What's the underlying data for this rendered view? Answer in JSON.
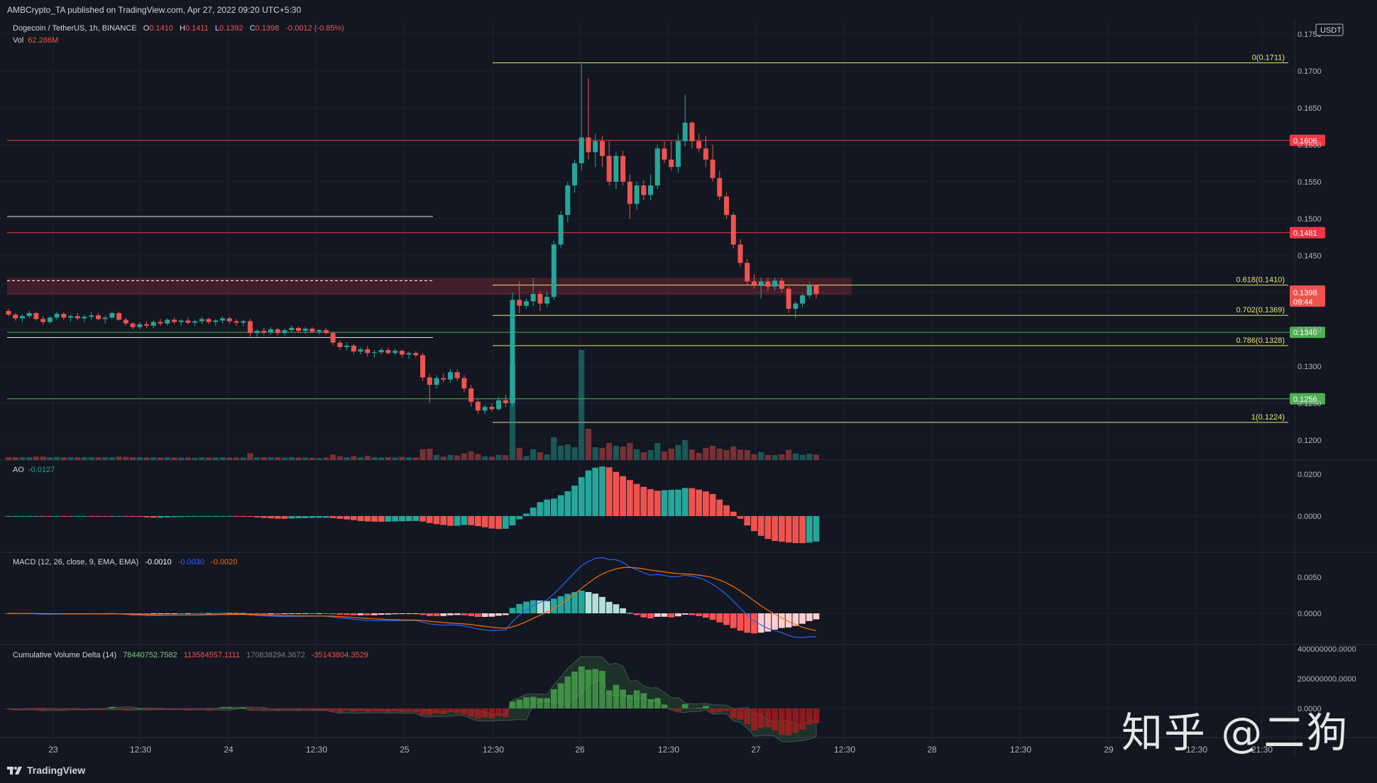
{
  "header": {
    "publisher_line": "AMBCrypto_TA published on TradingView.com, Apr 27, 2022 09:20 UTC+5:30"
  },
  "legend": {
    "symbol": "Dogecoin / TetherUS, 1h, BINANCE",
    "o_label": "O",
    "o_value": "0.1410",
    "h_label": "H",
    "h_value": "0.1411",
    "l_label": "L",
    "l_value": "0.1392",
    "c_label": "C",
    "c_value": "0.1398",
    "change": "-0.0012 (-0.85%)",
    "vol_label": "Vol",
    "vol_value": "62.286M"
  },
  "ao_legend": {
    "name": "AO",
    "value": "-0.0127"
  },
  "macd_legend": {
    "name": "MACD (12, 26, close, 9, EMA, EMA)",
    "hist": "-0.0010",
    "macd": "-0.0030",
    "signal": "-0.0020"
  },
  "cvd_legend": {
    "name": "Cumulative Volume Delta (14)",
    "v1": "78440752.7582",
    "v2": "113584557.1111",
    "v3": "170838294.3672",
    "v4": "-35143804.3529"
  },
  "currency_badge": "USDT",
  "footer": {
    "brand": "TradingView"
  },
  "watermark": "知乎 @二狗",
  "colors": {
    "background": "#131722",
    "up": "#26a69a",
    "down": "#ef5350",
    "fib": "#e8e07a",
    "red_line": "#f23645",
    "green_line": "#4caf50",
    "macd_line": "#2962ff",
    "signal_line": "#ff6d00"
  },
  "chart_data": {
    "type": "candlestick",
    "price_axis": {
      "ticks": [
        "0.1750",
        "0.1700",
        "0.1650",
        "0.1600",
        "0.1550",
        "0.1500",
        "0.1450",
        "0.1400",
        "0.1350",
        "0.1300",
        "0.1250",
        "0.1200"
      ],
      "ylim": [
        0.119,
        0.1762
      ]
    },
    "time_axis": {
      "labels": [
        "23",
        "12:30",
        "24",
        "12:30",
        "25",
        "12:30",
        "26",
        "12:30",
        "27",
        "12:30",
        "28",
        "12:30",
        "29",
        "12:30",
        "21:30"
      ]
    },
    "horizontal_levels": [
      {
        "price": 0.1606,
        "label": "0.1606",
        "color": "#f23645"
      },
      {
        "price": 0.1481,
        "label": "0.1481",
        "color": "#f23645"
      },
      {
        "price": 0.1346,
        "label": "0.1346",
        "color": "#4caf50"
      },
      {
        "price": 0.1256,
        "label": "0.1256",
        "color": "#4caf50"
      }
    ],
    "fib_levels": [
      {
        "label": "0(0.1711)",
        "price": 0.1711
      },
      {
        "label": "0.618(0.1410)",
        "price": 0.141
      },
      {
        "label": "0.702(0.1369)",
        "price": 0.1369
      },
      {
        "label": "0.786(0.1328)",
        "price": 0.1328
      },
      {
        "label": "1(0.1224)",
        "price": 0.1224
      }
    ],
    "current_price": {
      "label": "0.1398",
      "countdown": "09:44",
      "price": 0.1398
    },
    "candles": [
      [
        0.1375,
        0.1378,
        0.1368,
        0.137
      ],
      [
        0.137,
        0.1372,
        0.1362,
        0.1365
      ],
      [
        0.1365,
        0.137,
        0.136,
        0.1368
      ],
      [
        0.1368,
        0.1375,
        0.1365,
        0.1372
      ],
      [
        0.1372,
        0.1374,
        0.1362,
        0.1364
      ],
      [
        0.1364,
        0.1368,
        0.1356,
        0.136
      ],
      [
        0.136,
        0.1368,
        0.1358,
        0.1366
      ],
      [
        0.1366,
        0.1374,
        0.1363,
        0.1371
      ],
      [
        0.1371,
        0.1373,
        0.1363,
        0.1366
      ],
      [
        0.1366,
        0.137,
        0.136,
        0.1368
      ],
      [
        0.1368,
        0.1372,
        0.1362,
        0.1365
      ],
      [
        0.1365,
        0.137,
        0.136,
        0.1367
      ],
      [
        0.1367,
        0.1373,
        0.1363,
        0.1369
      ],
      [
        0.1369,
        0.1372,
        0.1362,
        0.1364
      ],
      [
        0.1364,
        0.1368,
        0.1358,
        0.1366
      ],
      [
        0.1366,
        0.1374,
        0.1364,
        0.1372
      ],
      [
        0.1372,
        0.1374,
        0.1362,
        0.1363
      ],
      [
        0.1363,
        0.1366,
        0.1355,
        0.1358
      ],
      [
        0.1358,
        0.136,
        0.135,
        0.1353
      ],
      [
        0.1353,
        0.136,
        0.135,
        0.1357
      ],
      [
        0.1357,
        0.1361,
        0.1352,
        0.1355
      ],
      [
        0.1355,
        0.1362,
        0.1352,
        0.136
      ],
      [
        0.136,
        0.1364,
        0.1355,
        0.1358
      ],
      [
        0.1358,
        0.1365,
        0.1355,
        0.1363
      ],
      [
        0.1363,
        0.1366,
        0.1357,
        0.136
      ],
      [
        0.136,
        0.1364,
        0.1355,
        0.1362
      ],
      [
        0.1362,
        0.1366,
        0.1357,
        0.1359
      ],
      [
        0.1359,
        0.1363,
        0.1355,
        0.1361
      ],
      [
        0.1361,
        0.1367,
        0.1357,
        0.1364
      ],
      [
        0.1364,
        0.1366,
        0.1357,
        0.136
      ],
      [
        0.136,
        0.1364,
        0.1355,
        0.1362
      ],
      [
        0.1362,
        0.1368,
        0.1358,
        0.1365
      ],
      [
        0.1365,
        0.1367,
        0.1358,
        0.1361
      ],
      [
        0.1361,
        0.1364,
        0.1355,
        0.1359
      ],
      [
        0.1359,
        0.1363,
        0.1354,
        0.1361
      ],
      [
        0.1361,
        0.1364,
        0.134,
        0.1345
      ],
      [
        0.1345,
        0.135,
        0.134,
        0.1348
      ],
      [
        0.1348,
        0.1352,
        0.1342,
        0.1346
      ],
      [
        0.1346,
        0.1353,
        0.1343,
        0.135
      ],
      [
        0.135,
        0.1352,
        0.1342,
        0.1345
      ],
      [
        0.1345,
        0.1351,
        0.1342,
        0.1349
      ],
      [
        0.1349,
        0.1355,
        0.1345,
        0.1352
      ],
      [
        0.1352,
        0.1354,
        0.1345,
        0.1348
      ],
      [
        0.1348,
        0.1353,
        0.1344,
        0.1351
      ],
      [
        0.1351,
        0.1353,
        0.1345,
        0.1347
      ],
      [
        0.1347,
        0.135,
        0.1343,
        0.1349
      ],
      [
        0.1349,
        0.1352,
        0.1343,
        0.1345
      ],
      [
        0.1345,
        0.1347,
        0.1328,
        0.1332
      ],
      [
        0.1332,
        0.1335,
        0.1322,
        0.1326
      ],
      [
        0.1326,
        0.1332,
        0.1322,
        0.1328
      ],
      [
        0.1328,
        0.133,
        0.1316,
        0.132
      ],
      [
        0.132,
        0.1326,
        0.1316,
        0.1323
      ],
      [
        0.1323,
        0.1328,
        0.1313,
        0.1318
      ],
      [
        0.1318,
        0.1322,
        0.1312,
        0.1319
      ],
      [
        0.1319,
        0.1325,
        0.1316,
        0.1322
      ],
      [
        0.1322,
        0.1326,
        0.1316,
        0.1318
      ],
      [
        0.1318,
        0.1324,
        0.1315,
        0.1321
      ],
      [
        0.1321,
        0.1323,
        0.1312,
        0.1316
      ],
      [
        0.1316,
        0.132,
        0.131,
        0.1318
      ],
      [
        0.1318,
        0.1321,
        0.1312,
        0.1315
      ],
      [
        0.1315,
        0.1318,
        0.128,
        0.1285
      ],
      [
        0.1285,
        0.129,
        0.125,
        0.1275
      ],
      [
        0.1275,
        0.1288,
        0.127,
        0.1284
      ],
      [
        0.1284,
        0.129,
        0.1278,
        0.1282
      ],
      [
        0.1282,
        0.1296,
        0.1278,
        0.1292
      ],
      [
        0.1292,
        0.1296,
        0.128,
        0.1284
      ],
      [
        0.1284,
        0.1288,
        0.1265,
        0.127
      ],
      [
        0.127,
        0.1275,
        0.1245,
        0.1252
      ],
      [
        0.1252,
        0.1256,
        0.1235,
        0.124
      ],
      [
        0.124,
        0.1248,
        0.1235,
        0.1245
      ],
      [
        0.1245,
        0.125,
        0.1238,
        0.1242
      ],
      [
        0.1242,
        0.1258,
        0.124,
        0.1254
      ],
      [
        0.1254,
        0.1262,
        0.1245,
        0.125
      ],
      [
        0.125,
        0.14,
        0.1246,
        0.139
      ],
      [
        0.139,
        0.1415,
        0.1372,
        0.1382
      ],
      [
        0.1382,
        0.1392,
        0.1378,
        0.1388
      ],
      [
        0.1388,
        0.142,
        0.1382,
        0.1398
      ],
      [
        0.1398,
        0.1402,
        0.1375,
        0.1385
      ],
      [
        0.1385,
        0.14,
        0.138,
        0.1394
      ],
      [
        0.1394,
        0.147,
        0.139,
        0.1465
      ],
      [
        0.1465,
        0.151,
        0.146,
        0.1505
      ],
      [
        0.1505,
        0.155,
        0.1495,
        0.1545
      ],
      [
        0.1545,
        0.158,
        0.1535,
        0.1575
      ],
      [
        0.1575,
        0.1712,
        0.1565,
        0.161
      ],
      [
        0.161,
        0.169,
        0.158,
        0.159
      ],
      [
        0.159,
        0.1615,
        0.157,
        0.1605
      ],
      [
        0.1605,
        0.1612,
        0.157,
        0.1585
      ],
      [
        0.1585,
        0.1605,
        0.1545,
        0.155
      ],
      [
        0.155,
        0.159,
        0.154,
        0.1585
      ],
      [
        0.1585,
        0.1592,
        0.1545,
        0.155
      ],
      [
        0.155,
        0.156,
        0.15,
        0.152
      ],
      [
        0.152,
        0.155,
        0.1512,
        0.1545
      ],
      [
        0.1545,
        0.1552,
        0.1525,
        0.1532
      ],
      [
        0.1532,
        0.156,
        0.1525,
        0.1545
      ],
      [
        0.1545,
        0.16,
        0.154,
        0.1595
      ],
      [
        0.1595,
        0.1605,
        0.1575,
        0.158
      ],
      [
        0.158,
        0.1605,
        0.1565,
        0.157
      ],
      [
        0.157,
        0.1615,
        0.1562,
        0.1605
      ],
      [
        0.1605,
        0.1668,
        0.1598,
        0.163
      ],
      [
        0.163,
        0.1632,
        0.1595,
        0.1605
      ],
      [
        0.1605,
        0.1615,
        0.159,
        0.1595
      ],
      [
        0.1595,
        0.1612,
        0.157,
        0.158
      ],
      [
        0.158,
        0.16,
        0.155,
        0.1555
      ],
      [
        0.1555,
        0.1565,
        0.1525,
        0.153
      ],
      [
        0.153,
        0.1535,
        0.15,
        0.1505
      ],
      [
        0.1505,
        0.1508,
        0.146,
        0.1465
      ],
      [
        0.1465,
        0.1472,
        0.1435,
        0.144
      ],
      [
        0.144,
        0.1445,
        0.141,
        0.1415
      ],
      [
        0.1415,
        0.1425,
        0.1405,
        0.141
      ],
      [
        0.141,
        0.142,
        0.1392,
        0.1415
      ],
      [
        0.1415,
        0.142,
        0.1402,
        0.1408
      ],
      [
        0.1408,
        0.142,
        0.1403,
        0.1416
      ],
      [
        0.1416,
        0.142,
        0.14,
        0.1405
      ],
      [
        0.1405,
        0.1408,
        0.1372,
        0.1378
      ],
      [
        0.1378,
        0.1388,
        0.1365,
        0.1385
      ],
      [
        0.1385,
        0.1398,
        0.138,
        0.1396
      ],
      [
        0.1396,
        0.1414,
        0.1392,
        0.141
      ],
      [
        0.141,
        0.1411,
        0.1392,
        0.1398
      ]
    ],
    "volume_label": "Vol 62.286M",
    "ao_axis": {
      "ticks": [
        "0.0200",
        "0.0000"
      ]
    },
    "macd_axis": {
      "ticks": [
        "0.0050",
        "0.0000"
      ]
    },
    "cvd_axis": {
      "ticks": [
        "400000000.0000",
        "200000000.0000",
        "0.0000"
      ]
    }
  }
}
